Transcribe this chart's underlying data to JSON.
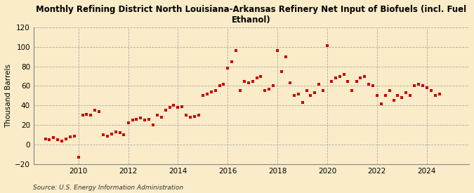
{
  "title": "Monthly Refining District North Louisiana-Arkansas Refinery Net Input of Biofuels (incl. Fuel\nEthanol)",
  "ylabel": "Thousand Barrels",
  "source": "Source: U.S. Energy Information Administration",
  "fig_background": "#faecc8",
  "plot_background": "#faecc8",
  "marker_color": "#cc0000",
  "grid_color": "#aaaaaa",
  "ylim": [
    -20,
    120
  ],
  "yticks": [
    -20,
    0,
    20,
    40,
    60,
    80,
    100,
    120
  ],
  "xlim": [
    2008.2,
    2025.7
  ],
  "xtick_years": [
    2010,
    2012,
    2014,
    2016,
    2018,
    2020,
    2022,
    2024
  ],
  "data": [
    [
      2008.67,
      6
    ],
    [
      2008.83,
      5
    ],
    [
      2009.0,
      7
    ],
    [
      2009.17,
      5
    ],
    [
      2009.33,
      4
    ],
    [
      2009.5,
      6
    ],
    [
      2009.67,
      8
    ],
    [
      2009.83,
      9
    ],
    [
      2010.0,
      -13
    ],
    [
      2010.17,
      30
    ],
    [
      2010.33,
      31
    ],
    [
      2010.5,
      30
    ],
    [
      2010.67,
      35
    ],
    [
      2010.83,
      34
    ],
    [
      2011.0,
      10
    ],
    [
      2011.17,
      9
    ],
    [
      2011.33,
      11
    ],
    [
      2011.5,
      13
    ],
    [
      2011.67,
      12
    ],
    [
      2011.83,
      10
    ],
    [
      2012.0,
      22
    ],
    [
      2012.17,
      25
    ],
    [
      2012.33,
      26
    ],
    [
      2012.5,
      27
    ],
    [
      2012.67,
      25
    ],
    [
      2012.83,
      26
    ],
    [
      2013.0,
      20
    ],
    [
      2013.17,
      30
    ],
    [
      2013.33,
      28
    ],
    [
      2013.5,
      35
    ],
    [
      2013.67,
      38
    ],
    [
      2013.83,
      40
    ],
    [
      2014.0,
      38
    ],
    [
      2014.17,
      39
    ],
    [
      2014.33,
      30
    ],
    [
      2014.5,
      28
    ],
    [
      2014.67,
      29
    ],
    [
      2014.83,
      30
    ],
    [
      2015.0,
      50
    ],
    [
      2015.17,
      52
    ],
    [
      2015.33,
      54
    ],
    [
      2015.5,
      55
    ],
    [
      2015.67,
      60
    ],
    [
      2015.83,
      62
    ],
    [
      2016.0,
      78
    ],
    [
      2016.17,
      85
    ],
    [
      2016.33,
      96
    ],
    [
      2016.5,
      55
    ],
    [
      2016.67,
      65
    ],
    [
      2016.83,
      63
    ],
    [
      2017.0,
      65
    ],
    [
      2017.17,
      68
    ],
    [
      2017.33,
      70
    ],
    [
      2017.5,
      55
    ],
    [
      2017.67,
      57
    ],
    [
      2017.83,
      60
    ],
    [
      2018.0,
      96
    ],
    [
      2018.17,
      75
    ],
    [
      2018.33,
      90
    ],
    [
      2018.5,
      63
    ],
    [
      2018.67,
      50
    ],
    [
      2018.83,
      52
    ],
    [
      2019.0,
      43
    ],
    [
      2019.17,
      55
    ],
    [
      2019.33,
      50
    ],
    [
      2019.5,
      53
    ],
    [
      2019.67,
      62
    ],
    [
      2019.83,
      55
    ],
    [
      2020.0,
      101
    ],
    [
      2020.17,
      65
    ],
    [
      2020.33,
      68
    ],
    [
      2020.5,
      70
    ],
    [
      2020.67,
      72
    ],
    [
      2020.83,
      65
    ],
    [
      2021.0,
      55
    ],
    [
      2021.17,
      65
    ],
    [
      2021.33,
      68
    ],
    [
      2021.5,
      70
    ],
    [
      2021.67,
      62
    ],
    [
      2021.83,
      60
    ],
    [
      2022.0,
      50
    ],
    [
      2022.17,
      42
    ],
    [
      2022.33,
      50
    ],
    [
      2022.5,
      55
    ],
    [
      2022.67,
      45
    ],
    [
      2022.83,
      50
    ],
    [
      2023.0,
      48
    ],
    [
      2023.17,
      53
    ],
    [
      2023.33,
      50
    ],
    [
      2023.5,
      60
    ],
    [
      2023.67,
      62
    ],
    [
      2023.83,
      60
    ],
    [
      2024.0,
      58
    ],
    [
      2024.17,
      55
    ],
    [
      2024.33,
      50
    ],
    [
      2024.5,
      52
    ]
  ]
}
